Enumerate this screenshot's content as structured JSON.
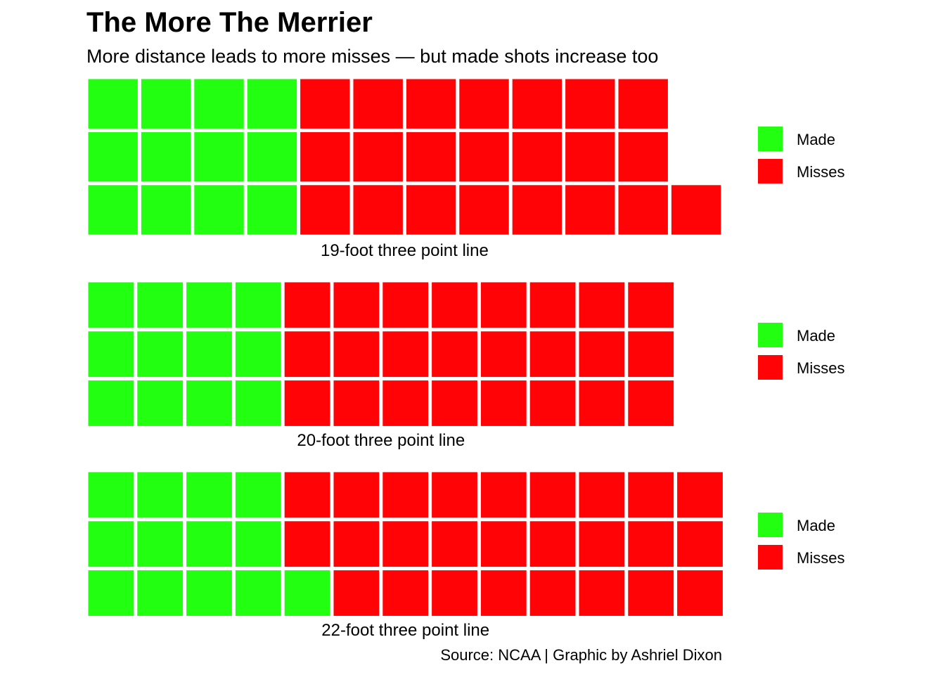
{
  "title": "The More The Merrier",
  "subtitle": "More distance leads to more misses — but made shots increase too",
  "caption": "Source: NCAA | Graphic by Ashriel Dixon",
  "colors": {
    "made": "#22ff11",
    "misses": "#ff0307"
  },
  "chart_data": [
    {
      "type": "waffle",
      "label": "19-foot three point line",
      "rows": 3,
      "made": 12,
      "misses": 22,
      "legend": [
        "Made",
        "Misses"
      ]
    },
    {
      "type": "waffle",
      "label": "20-foot three point line",
      "rows": 3,
      "made": 12,
      "misses": 24,
      "legend": [
        "Made",
        "Misses"
      ]
    },
    {
      "type": "waffle",
      "label": "22-foot three point line",
      "rows": 3,
      "made": 13,
      "misses": 26,
      "legend": [
        "Made",
        "Misses"
      ]
    }
  ]
}
